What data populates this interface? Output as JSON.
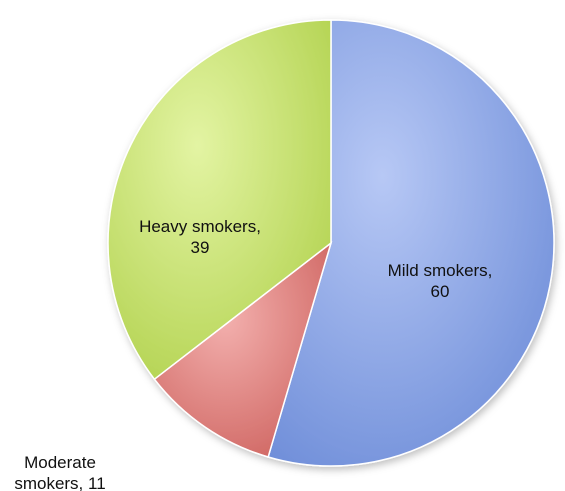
{
  "chart_data": {
    "type": "pie",
    "categories": [
      "Mild smokers",
      "Moderate smokers",
      "Heavy smokers"
    ],
    "values": [
      60,
      11,
      39
    ],
    "labels": [
      [
        "Mild smokers,",
        "60"
      ],
      [
        "Moderate",
        "smokers, 11"
      ],
      [
        "Heavy smokers,",
        "39"
      ]
    ],
    "colors": [
      "#8aa4e6",
      "#e07f7c",
      "#c8e26c"
    ],
    "start_angle_deg": 0,
    "direction": "clockwise",
    "legend": "none"
  }
}
